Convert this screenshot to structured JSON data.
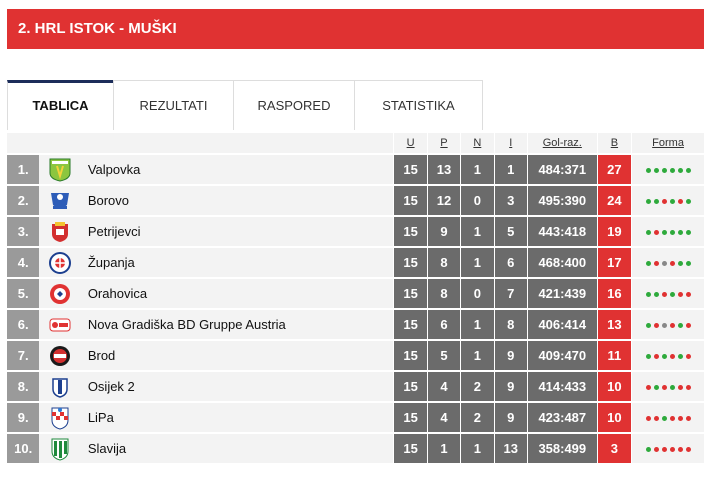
{
  "header": {
    "title": "2. HRL ISTOK - MUŠKI"
  },
  "tabs": [
    {
      "label": "TABLICA",
      "active": true
    },
    {
      "label": "REZULTATI",
      "active": false
    },
    {
      "label": "RASPORED",
      "active": false
    },
    {
      "label": "STATISTIKA",
      "active": false
    }
  ],
  "columns": {
    "u": "U",
    "p": "P",
    "n": "N",
    "i": "I",
    "goals": "Gol-raz.",
    "b": "B",
    "form": "Forma"
  },
  "colors": {
    "win": "#2eaa3c",
    "loss": "#e03232",
    "draw": "#888888",
    "accent": "#e03232"
  },
  "rows": [
    {
      "rank": "1.",
      "team": "Valpovka",
      "logo": "valpovka-logo",
      "u": "15",
      "p": "13",
      "n": "1",
      "i": "1",
      "goals": "484:371",
      "b": "27",
      "form": [
        "W",
        "W",
        "W",
        "W",
        "W",
        "W"
      ]
    },
    {
      "rank": "2.",
      "team": "Borovo",
      "logo": "borovo-logo",
      "u": "15",
      "p": "12",
      "n": "0",
      "i": "3",
      "goals": "495:390",
      "b": "24",
      "form": [
        "W",
        "W",
        "L",
        "W",
        "L",
        "W"
      ]
    },
    {
      "rank": "3.",
      "team": "Petrijevci",
      "logo": "petrijevci-logo",
      "u": "15",
      "p": "9",
      "n": "1",
      "i": "5",
      "goals": "443:418",
      "b": "19",
      "form": [
        "W",
        "L",
        "W",
        "W",
        "W",
        "W"
      ]
    },
    {
      "rank": "4.",
      "team": "Županja",
      "logo": "zupanja-logo",
      "u": "15",
      "p": "8",
      "n": "1",
      "i": "6",
      "goals": "468:400",
      "b": "17",
      "form": [
        "W",
        "L",
        "D",
        "L",
        "W",
        "W"
      ]
    },
    {
      "rank": "5.",
      "team": "Orahovica",
      "logo": "orahovica-logo",
      "u": "15",
      "p": "8",
      "n": "0",
      "i": "7",
      "goals": "421:439",
      "b": "16",
      "form": [
        "W",
        "W",
        "L",
        "W",
        "L",
        "L"
      ]
    },
    {
      "rank": "6.",
      "team": "Nova Gradiška BD Gruppe Austria",
      "logo": "nova-gradiska-logo",
      "u": "15",
      "p": "6",
      "n": "1",
      "i": "8",
      "goals": "406:414",
      "b": "13",
      "form": [
        "W",
        "L",
        "D",
        "L",
        "W",
        "L"
      ]
    },
    {
      "rank": "7.",
      "team": "Brod",
      "logo": "brod-logo",
      "u": "15",
      "p": "5",
      "n": "1",
      "i": "9",
      "goals": "409:470",
      "b": "11",
      "form": [
        "W",
        "L",
        "W",
        "L",
        "W",
        "L"
      ]
    },
    {
      "rank": "8.",
      "team": "Osijek 2",
      "logo": "osijek-logo",
      "u": "15",
      "p": "4",
      "n": "2",
      "i": "9",
      "goals": "414:433",
      "b": "10",
      "form": [
        "L",
        "W",
        "L",
        "W",
        "L",
        "L"
      ]
    },
    {
      "rank": "9.",
      "team": "LiPa",
      "logo": "lipa-logo",
      "u": "15",
      "p": "4",
      "n": "2",
      "i": "9",
      "goals": "423:487",
      "b": "10",
      "form": [
        "L",
        "L",
        "W",
        "L",
        "L",
        "L"
      ]
    },
    {
      "rank": "10.",
      "team": "Slavija",
      "logo": "slavija-logo",
      "u": "15",
      "p": "1",
      "n": "1",
      "i": "13",
      "goals": "358:499",
      "b": "3",
      "form": [
        "W",
        "L",
        "L",
        "L",
        "L",
        "L"
      ]
    }
  ]
}
